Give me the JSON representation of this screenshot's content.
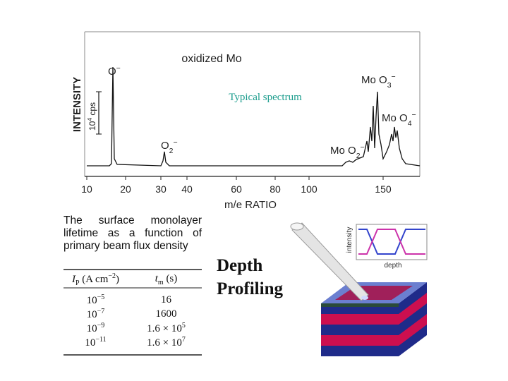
{
  "spectrum": {
    "title": "oxidized Mo",
    "ylabel": "INTENSITY",
    "scale": [
      {
        "t": "10"
      },
      {
        "t": "4",
        "style": "sup"
      },
      {
        "t": " cps"
      }
    ],
    "caption": "Typical spectrum",
    "xlabel": "m/e RATIO",
    "xticks": [
      "10",
      "20",
      "30",
      "40",
      "60",
      "80",
      "100",
      "150"
    ],
    "peaks": [
      [
        {
          "t": "O"
        },
        {
          "t": "−",
          "style": "sup"
        }
      ],
      [
        {
          "t": "O"
        },
        {
          "t": "2",
          "style": "sub"
        },
        {
          "t": "−",
          "style": "sup"
        }
      ],
      [
        {
          "t": "Mo O"
        },
        {
          "t": "2",
          "style": "sub"
        },
        {
          "t": "−",
          "style": "sup"
        }
      ],
      [
        {
          "t": "Mo O"
        },
        {
          "t": "3",
          "style": "sub"
        },
        {
          "t": "−",
          "style": "sup"
        }
      ],
      [
        {
          "t": "Mo O"
        },
        {
          "t": "4",
          "style": "sub"
        },
        {
          "t": "−",
          "style": "sup"
        }
      ]
    ]
  },
  "table": {
    "caption": "The surface monolayer lifetime as a function of primary beam flux density",
    "header": [
      [
        {
          "t": "I",
          "style": "i"
        },
        {
          "t": "P",
          "style": "sub"
        },
        {
          "t": " (A cm"
        },
        {
          "t": "−2",
          "style": "sup"
        },
        {
          "t": ")"
        }
      ],
      [
        {
          "t": "t",
          "style": "i"
        },
        {
          "t": "m",
          "style": "sub"
        },
        {
          "t": " (s)"
        }
      ]
    ],
    "rows": [
      [
        [
          {
            "t": "10"
          },
          {
            "t": "−5",
            "style": "sup"
          }
        ],
        [
          {
            "t": "16"
          }
        ]
      ],
      [
        [
          {
            "t": "10"
          },
          {
            "t": "−7",
            "style": "sup"
          }
        ],
        [
          {
            "t": "1600"
          }
        ]
      ],
      [
        [
          {
            "t": "10"
          },
          {
            "t": "−9",
            "style": "sup"
          }
        ],
        [
          {
            "t": "1.6 × 10"
          },
          {
            "t": "5",
            "style": "sup"
          }
        ]
      ],
      [
        [
          {
            "t": "10"
          },
          {
            "t": "−11",
            "style": "sup"
          }
        ],
        [
          {
            "t": "1.6 × 10"
          },
          {
            "t": "7",
            "style": "sup"
          }
        ]
      ]
    ]
  },
  "depth": {
    "title": "Depth Profiling",
    "inset_ylabel": "intensity",
    "inset_xlabel": "depth"
  }
}
